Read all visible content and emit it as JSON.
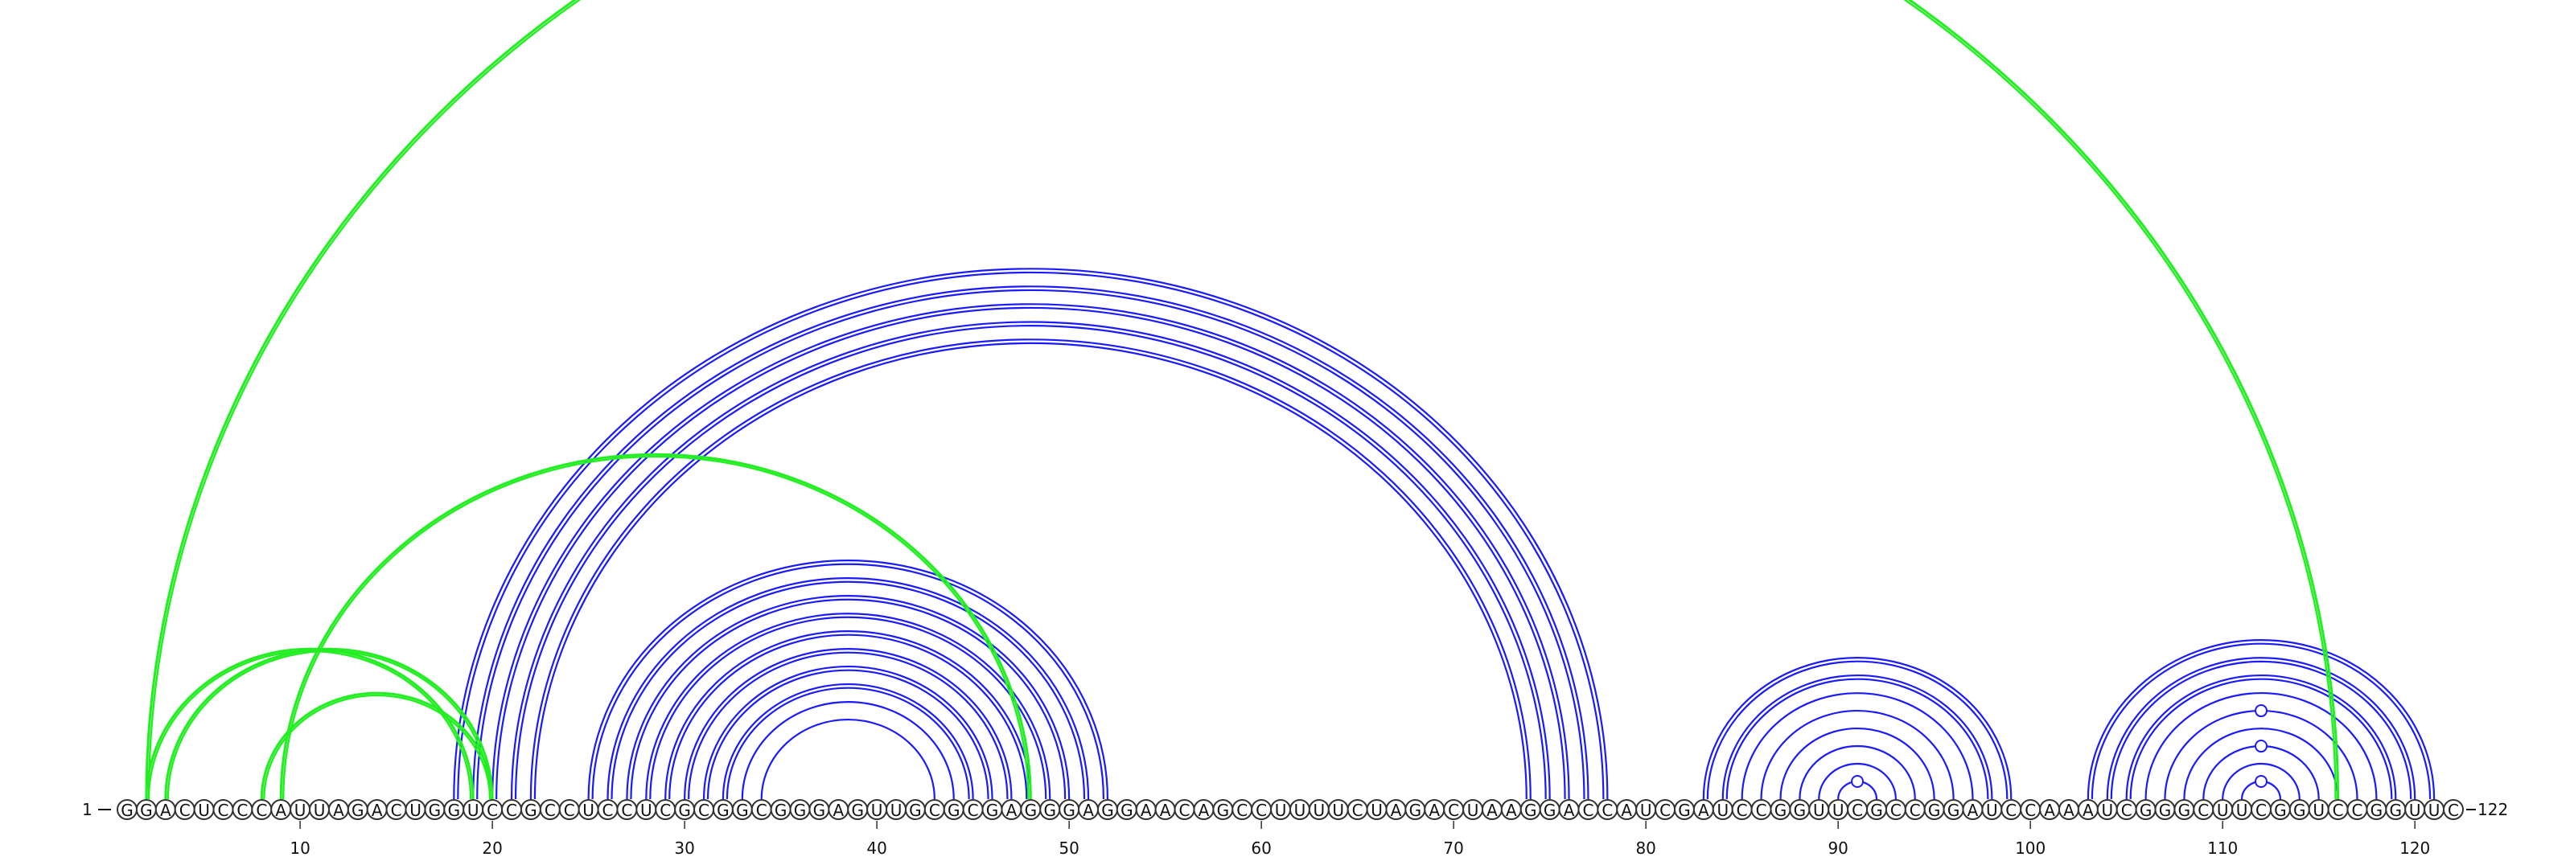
{
  "diagram": {
    "type": "rna-arc-diagram",
    "sequence": "GGACUCCCAUUAGACUGGUCCGCCUCCUCGCGGCGGGAGUUGCGCGAGGGAGGAACAGCCUUUUCUAGACUAAGGACCAUCGAUCCGGUUCGCCGGAUCCAAAUCGGGCUUCGGUCCGGUUC",
    "start_label": "1",
    "end_label": "122",
    "tick_positions": [
      10,
      20,
      30,
      40,
      50,
      60,
      70,
      80,
      90,
      100,
      110,
      120
    ],
    "tick_labels": [
      "10",
      "20",
      "30",
      "40",
      "50",
      "60",
      "70",
      "80",
      "90",
      "100",
      "110",
      "120"
    ],
    "colors": {
      "blue": "#1a1aff",
      "green": "#22ee22"
    },
    "blue_pairs": [
      [
        18,
        78
      ],
      [
        19,
        77
      ],
      [
        20,
        76
      ],
      [
        21,
        75
      ],
      [
        22,
        74
      ],
      [
        25,
        52
      ],
      [
        26,
        51
      ],
      [
        27,
        50
      ],
      [
        28,
        49
      ],
      [
        29,
        48
      ],
      [
        30,
        47
      ],
      [
        31,
        46
      ],
      [
        32,
        45
      ],
      [
        33,
        44
      ],
      [
        34,
        43
      ],
      [
        83,
        99
      ],
      [
        84,
        98
      ],
      [
        85,
        97
      ],
      [
        86,
        96
      ],
      [
        87,
        95
      ],
      [
        88,
        94
      ],
      [
        89,
        93
      ],
      [
        90,
        92
      ],
      [
        103,
        121
      ],
      [
        104,
        120
      ],
      [
        105,
        119
      ],
      [
        106,
        118
      ],
      [
        107,
        117
      ],
      [
        108,
        116
      ],
      [
        109,
        115
      ],
      [
        110,
        114
      ],
      [
        111,
        113
      ]
    ],
    "green_pairs": [
      [
        2,
        116
      ],
      [
        2,
        19
      ],
      [
        3,
        20
      ],
      [
        8,
        20
      ],
      [
        9,
        48
      ]
    ],
    "loop_markers": [
      91,
      112
    ]
  }
}
